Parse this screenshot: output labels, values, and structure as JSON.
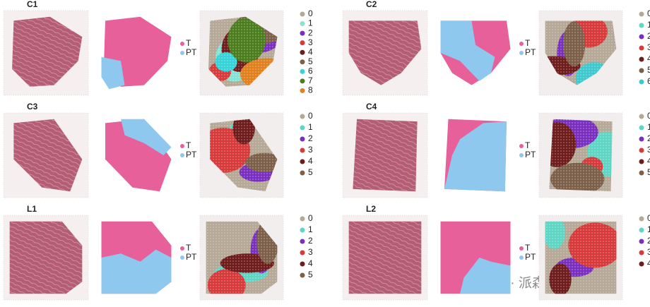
{
  "panels": [
    {
      "title": "C1",
      "groups": [
        {
          "label": "T",
          "color": "#e8609a"
        },
        {
          "label": "PT",
          "color": "#8ec8ee"
        }
      ],
      "clusters": [
        {
          "label": "0",
          "color": "#b5a896"
        },
        {
          "label": "1",
          "color": "#86e3d3"
        },
        {
          "label": "2",
          "color": "#7a2fbf"
        },
        {
          "label": "3",
          "color": "#d63a3a"
        },
        {
          "label": "4",
          "color": "#6e1c1c"
        },
        {
          "label": "5",
          "color": "#7d6049"
        },
        {
          "label": "6",
          "color": "#36d3d8"
        },
        {
          "label": "7",
          "color": "#4c7d1f"
        },
        {
          "label": "8",
          "color": "#e0801f"
        }
      ]
    },
    {
      "title": "C2",
      "groups": [
        {
          "label": "T",
          "color": "#e8609a"
        },
        {
          "label": "PT",
          "color": "#8ec8ee"
        }
      ],
      "clusters": [
        {
          "label": "0",
          "color": "#b5a896"
        },
        {
          "label": "1",
          "color": "#5fd6c4"
        },
        {
          "label": "2",
          "color": "#7a2fbf"
        },
        {
          "label": "3",
          "color": "#d63a3a"
        },
        {
          "label": "4",
          "color": "#6e1c1c"
        },
        {
          "label": "5",
          "color": "#7d6049"
        },
        {
          "label": "6",
          "color": "#3fc9cf"
        }
      ]
    },
    {
      "title": "C3",
      "groups": [
        {
          "label": "T",
          "color": "#e8609a"
        },
        {
          "label": "PT",
          "color": "#8ec8ee"
        }
      ],
      "clusters": [
        {
          "label": "0",
          "color": "#b5a896"
        },
        {
          "label": "1",
          "color": "#5fd6c4"
        },
        {
          "label": "2",
          "color": "#7a2fbf"
        },
        {
          "label": "3",
          "color": "#d63a3a"
        },
        {
          "label": "4",
          "color": "#6e1c1c"
        },
        {
          "label": "5",
          "color": "#7d6049"
        }
      ]
    },
    {
      "title": "C4",
      "groups": [
        {
          "label": "T",
          "color": "#e8609a"
        },
        {
          "label": "PT",
          "color": "#8ec8ee"
        }
      ],
      "clusters": [
        {
          "label": "0",
          "color": "#b5a896"
        },
        {
          "label": "1",
          "color": "#5fd6c4"
        },
        {
          "label": "2",
          "color": "#7a2fbf"
        },
        {
          "label": "3",
          "color": "#d63a3a"
        },
        {
          "label": "4",
          "color": "#6e1c1c"
        },
        {
          "label": "5",
          "color": "#7d6049"
        }
      ]
    },
    {
      "title": "L1",
      "groups": [
        {
          "label": "T",
          "color": "#e8609a"
        },
        {
          "label": "PT",
          "color": "#8ec8ee"
        }
      ],
      "clusters": [
        {
          "label": "0",
          "color": "#b5a896"
        },
        {
          "label": "1",
          "color": "#5fd6c4"
        },
        {
          "label": "2",
          "color": "#7a2fbf"
        },
        {
          "label": "3",
          "color": "#d63a3a"
        },
        {
          "label": "4",
          "color": "#6e1c1c"
        },
        {
          "label": "5",
          "color": "#7d6049"
        }
      ]
    },
    {
      "title": "L2",
      "groups": [
        {
          "label": "T",
          "color": "#e8609a"
        },
        {
          "label": "PT",
          "color": "#8ec8ee"
        }
      ],
      "clusters": [
        {
          "label": "0",
          "color": "#b5a896"
        },
        {
          "label": "1",
          "color": "#5fd6c4"
        },
        {
          "label": "2",
          "color": "#7a2fbf"
        },
        {
          "label": "3",
          "color": "#d63a3a"
        },
        {
          "label": "4",
          "color": "#6e1c1c"
        }
      ]
    }
  ],
  "watermark": "公众号 · 派森诺生物"
}
